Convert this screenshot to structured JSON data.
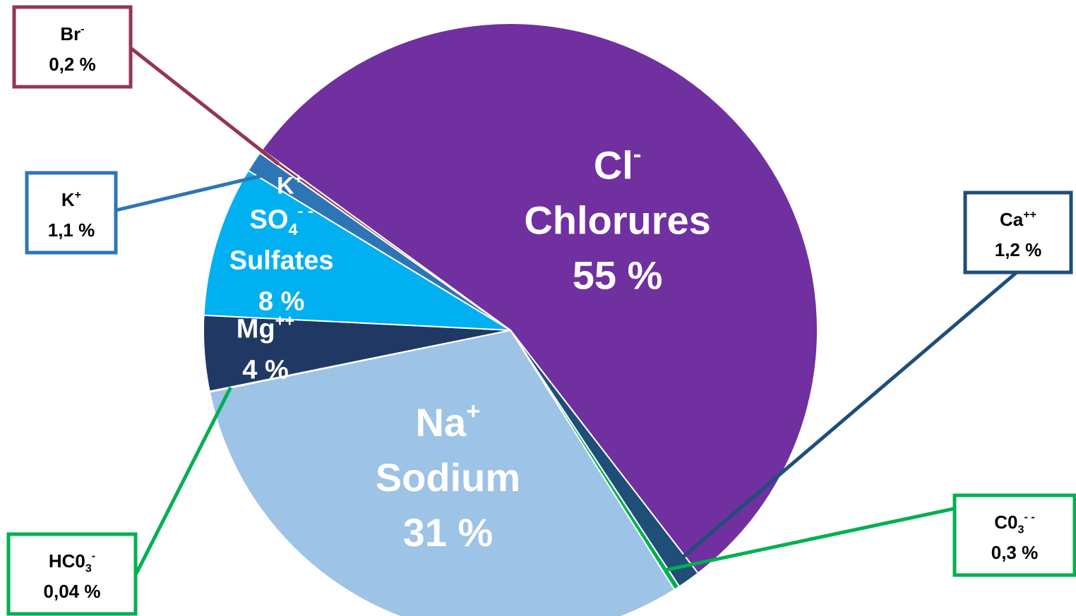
{
  "chart_data": {
    "type": "pie",
    "slices": [
      {
        "base": "Cl",
        "sup": "-",
        "name": "Chlorures",
        "value": 55,
        "value_label": "55 %",
        "color": "#7030a0"
      },
      {
        "base": "Ca",
        "sup": "++",
        "value": 1.2,
        "value_label": "1,2 %",
        "color": "#1f4e79"
      },
      {
        "base": "C0",
        "sub": "3",
        "sup": "- -",
        "value": 0.3,
        "value_label": "0,3 %",
        "color": "#00b050"
      },
      {
        "base": "Na",
        "sup": "+",
        "name": "Sodium",
        "value": 31,
        "value_label": "31 %",
        "color": "#9dc3e6"
      },
      {
        "base": "HC0",
        "sub": "3",
        "sup": "-",
        "value": 0.04,
        "value_label": "0,04 %",
        "color": "#00b050"
      },
      {
        "base": "Mg",
        "sup": "++",
        "value": 4,
        "value_label": "4 %",
        "color": "#203864"
      },
      {
        "base": "SO",
        "sub": "4",
        "sup": "- -",
        "name": "Sulfates",
        "value": 8,
        "value_label": "8 %",
        "color": "#00b0f0"
      },
      {
        "base": "K",
        "sup": "+",
        "value": 1.1,
        "value_label": "1,1 %",
        "color": "#2e75b6"
      },
      {
        "base": "Br",
        "sup": "-",
        "value": 0.2,
        "value_label": "0,2 %",
        "color": "#953552"
      }
    ]
  }
}
